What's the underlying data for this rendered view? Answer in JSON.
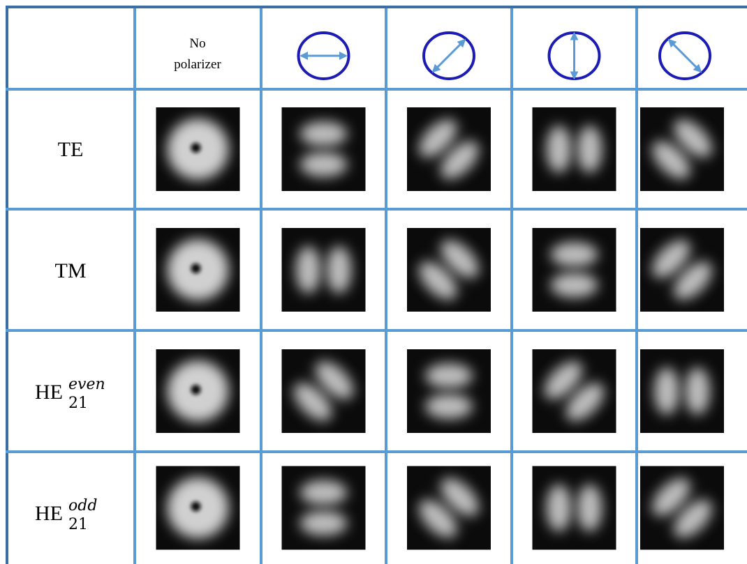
{
  "header": {
    "no_polarizer": [
      "No",
      "polarizer"
    ]
  },
  "rows": [
    {
      "label": {
        "base": "TE"
      }
    },
    {
      "label": {
        "base": "TM"
      }
    },
    {
      "label": {
        "base": "HE",
        "sub": "21",
        "sup": "even"
      }
    },
    {
      "label": {
        "base": "HE",
        "sub": "21",
        "sup": "odd"
      }
    }
  ]
}
